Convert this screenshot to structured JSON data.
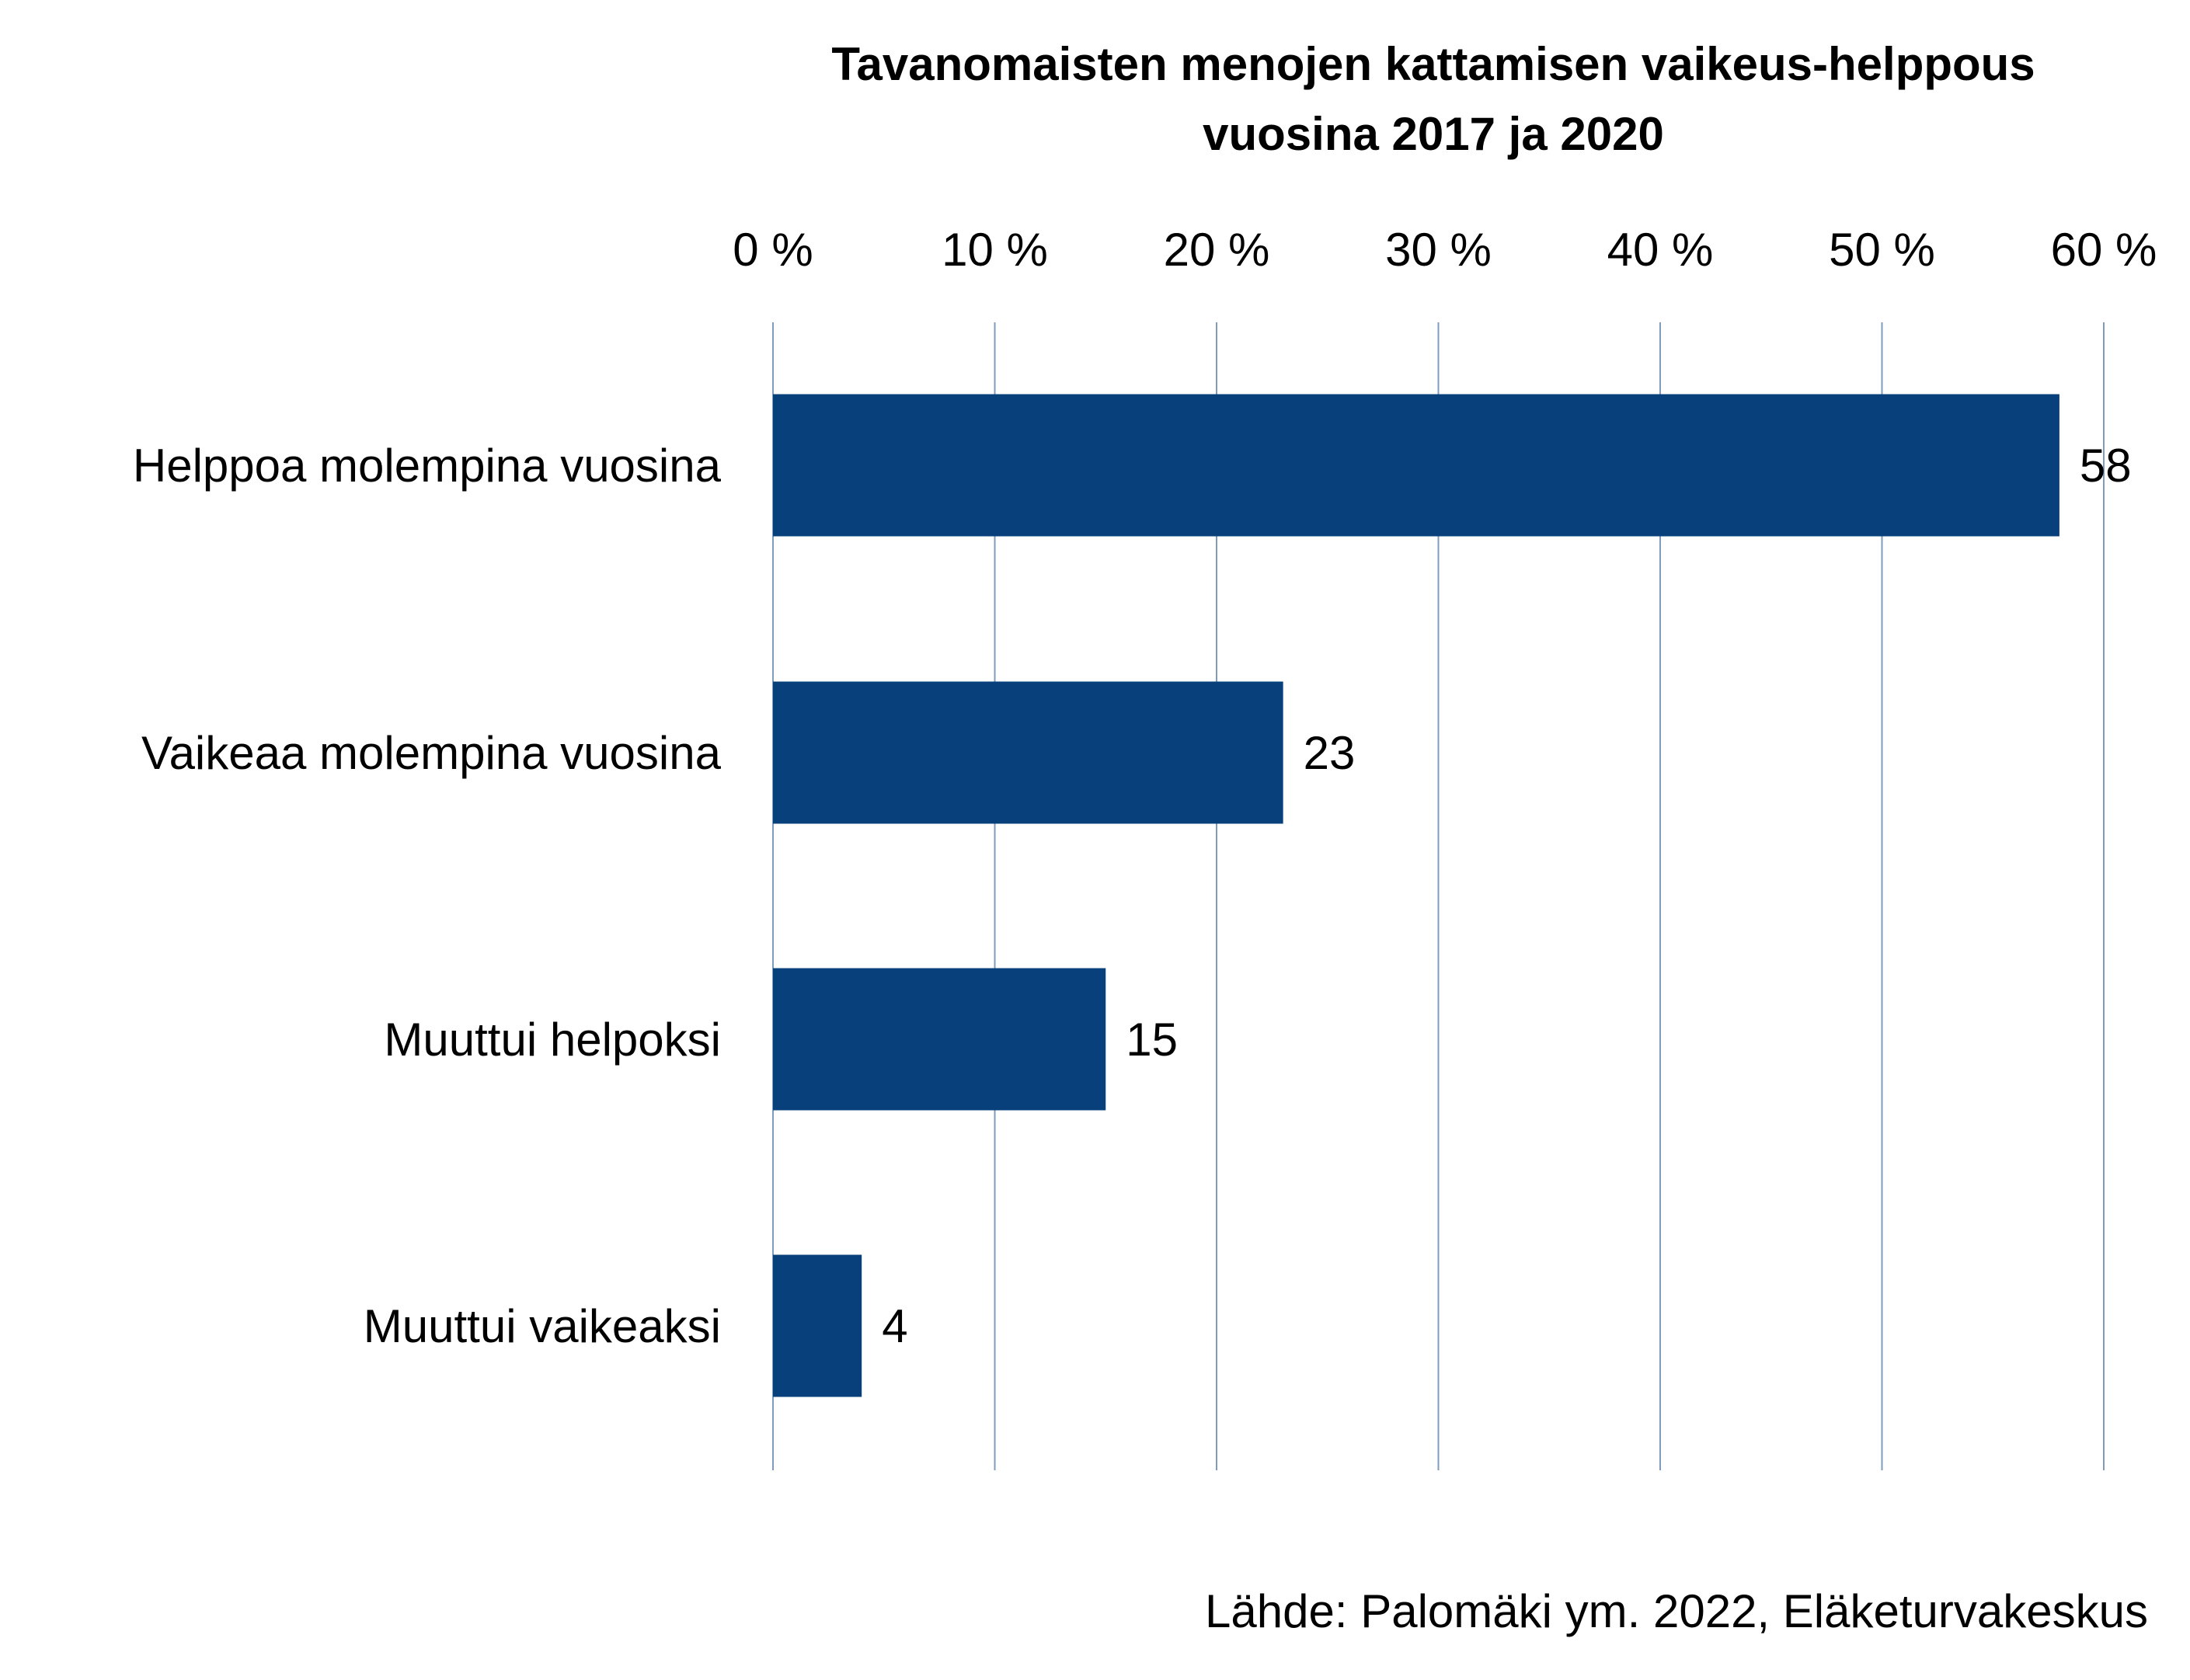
{
  "chart_data": {
    "type": "bar",
    "orientation": "horizontal",
    "title_lines": [
      "Tavanomaisten menojen kattamisen vaikeus-helppous",
      "vuosina 2017 ja 2020"
    ],
    "categories": [
      "Helppoa molempina vuosina",
      "Vaikeaa molempina vuosina",
      "Muuttui helpoksi",
      "Muuttui vaikeaksi"
    ],
    "values": [
      58,
      23,
      15,
      4
    ],
    "data_labels": [
      "58",
      "23",
      "15",
      "4"
    ],
    "xlim": [
      0,
      60
    ],
    "x_ticks": [
      0,
      10,
      20,
      30,
      40,
      50,
      60
    ],
    "x_tick_labels": [
      "0 %",
      "10 %",
      "20 %",
      "30 %",
      "40 %",
      "50 %",
      "60 %"
    ],
    "x_axis_position": "top",
    "grid": true,
    "legend": false,
    "bar_color": "#07407b",
    "grid_color": "#7f9cbc"
  },
  "source": "Lähde: Palomäki ym. 2022, Eläketurvakeskus"
}
